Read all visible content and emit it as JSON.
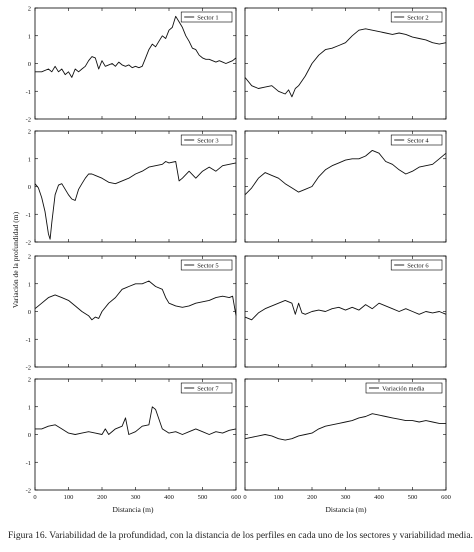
{
  "caption": "Figura 16. Variabilidad de la profundidad, con la distancia de los perfiles en cada uno de los sectores y variabilidad media.",
  "ylabel": "Variación de la profundidad (m)",
  "xlabel": "Distancia (m)",
  "chart_data": [
    {
      "type": "line",
      "legend": "Sector 1",
      "xlim": [
        0,
        600
      ],
      "ylim": [
        -2,
        2
      ],
      "series": [
        {
          "name": "Sector 1",
          "x": [
            0,
            20,
            40,
            50,
            60,
            70,
            80,
            90,
            100,
            110,
            120,
            130,
            140,
            150,
            160,
            170,
            180,
            190,
            200,
            210,
            220,
            230,
            240,
            250,
            260,
            270,
            280,
            290,
            300,
            310,
            320,
            330,
            340,
            350,
            360,
            370,
            380,
            390,
            400,
            410,
            420,
            430,
            440,
            450,
            460,
            470,
            480,
            490,
            500,
            510,
            520,
            530,
            540,
            550,
            560,
            570,
            580,
            590,
            600
          ],
          "y": [
            -0.3,
            -0.3,
            -0.2,
            -0.3,
            -0.1,
            -0.3,
            -0.2,
            -0.4,
            -0.3,
            -0.5,
            -0.2,
            -0.3,
            -0.2,
            -0.1,
            0.1,
            0.25,
            0.2,
            -0.2,
            0.1,
            -0.1,
            -0.05,
            0.0,
            -0.1,
            0.05,
            -0.05,
            -0.1,
            -0.05,
            -0.15,
            -0.1,
            -0.15,
            -0.1,
            0.2,
            0.5,
            0.7,
            0.6,
            0.8,
            1.0,
            0.9,
            1.2,
            1.3,
            1.7,
            1.5,
            1.3,
            1.0,
            0.8,
            0.55,
            0.5,
            0.3,
            0.2,
            0.15,
            0.15,
            0.1,
            0.05,
            0.1,
            0.05,
            0.0,
            0.05,
            0.1,
            0.2
          ]
        }
      ]
    },
    {
      "type": "line",
      "legend": "Sector 2",
      "xlim": [
        0,
        600
      ],
      "ylim": [
        -2,
        2
      ],
      "series": [
        {
          "name": "Sector 2",
          "x": [
            0,
            20,
            40,
            60,
            80,
            100,
            120,
            130,
            140,
            150,
            160,
            180,
            200,
            220,
            240,
            260,
            280,
            300,
            320,
            340,
            360,
            380,
            400,
            420,
            440,
            460,
            480,
            500,
            520,
            540,
            560,
            580,
            600
          ],
          "y": [
            -0.5,
            -0.8,
            -0.9,
            -0.85,
            -0.8,
            -1.0,
            -1.1,
            -0.95,
            -1.2,
            -0.9,
            -0.8,
            -0.45,
            0.0,
            0.3,
            0.5,
            0.55,
            0.65,
            0.75,
            1.0,
            1.2,
            1.25,
            1.2,
            1.15,
            1.1,
            1.05,
            1.1,
            1.05,
            0.95,
            0.9,
            0.85,
            0.75,
            0.7,
            0.75
          ]
        }
      ]
    },
    {
      "type": "line",
      "legend": "Sector 3",
      "xlim": [
        0,
        600
      ],
      "ylim": [
        -2,
        2
      ],
      "series": [
        {
          "name": "Sector 3",
          "x": [
            0,
            10,
            20,
            30,
            40,
            45,
            50,
            60,
            70,
            80,
            90,
            100,
            110,
            120,
            130,
            140,
            150,
            160,
            170,
            180,
            200,
            220,
            240,
            260,
            280,
            300,
            320,
            340,
            360,
            380,
            390,
            400,
            420,
            430,
            440,
            460,
            480,
            500,
            520,
            540,
            560,
            580,
            600
          ],
          "y": [
            0.1,
            -0.05,
            -0.4,
            -0.9,
            -1.7,
            -1.9,
            -1.3,
            -0.3,
            0.05,
            0.1,
            -0.1,
            -0.3,
            -0.45,
            -0.5,
            -0.1,
            0.1,
            0.3,
            0.45,
            0.45,
            0.4,
            0.3,
            0.15,
            0.1,
            0.2,
            0.3,
            0.45,
            0.55,
            0.7,
            0.75,
            0.8,
            0.9,
            0.85,
            0.9,
            0.2,
            0.3,
            0.55,
            0.3,
            0.55,
            0.7,
            0.55,
            0.75,
            0.8,
            0.85
          ]
        }
      ]
    },
    {
      "type": "line",
      "legend": "Sector 4",
      "xlim": [
        0,
        600
      ],
      "ylim": [
        -2,
        2
      ],
      "series": [
        {
          "name": "Sector 4",
          "x": [
            0,
            20,
            40,
            60,
            80,
            100,
            120,
            140,
            160,
            180,
            200,
            220,
            240,
            260,
            280,
            300,
            320,
            340,
            360,
            380,
            400,
            420,
            440,
            460,
            480,
            500,
            520,
            540,
            560,
            580,
            600
          ],
          "y": [
            -0.3,
            -0.05,
            0.3,
            0.5,
            0.4,
            0.3,
            0.1,
            -0.05,
            -0.2,
            -0.1,
            0.0,
            0.35,
            0.6,
            0.75,
            0.85,
            0.95,
            1.0,
            1.0,
            1.1,
            1.3,
            1.2,
            0.9,
            0.8,
            0.6,
            0.45,
            0.55,
            0.7,
            0.75,
            0.8,
            1.0,
            1.2
          ]
        }
      ]
    },
    {
      "type": "line",
      "legend": "Sector 5",
      "xlim": [
        0,
        600
      ],
      "ylim": [
        -2,
        2
      ],
      "series": [
        {
          "name": "Sector 5",
          "x": [
            0,
            20,
            40,
            60,
            80,
            100,
            120,
            140,
            160,
            170,
            180,
            190,
            200,
            220,
            240,
            260,
            280,
            300,
            320,
            340,
            360,
            380,
            390,
            400,
            420,
            440,
            460,
            480,
            500,
            520,
            540,
            560,
            580,
            590,
            600
          ],
          "y": [
            0.1,
            0.3,
            0.5,
            0.6,
            0.5,
            0.4,
            0.2,
            0.0,
            -0.15,
            -0.3,
            -0.2,
            -0.25,
            0.0,
            0.3,
            0.5,
            0.8,
            0.9,
            1.0,
            1.0,
            1.1,
            0.9,
            0.8,
            0.5,
            0.3,
            0.2,
            0.15,
            0.2,
            0.3,
            0.35,
            0.4,
            0.5,
            0.55,
            0.5,
            0.55,
            -0.15
          ]
        }
      ]
    },
    {
      "type": "line",
      "legend": "Sector 6",
      "xlim": [
        0,
        600
      ],
      "ylim": [
        -2,
        2
      ],
      "series": [
        {
          "name": "Sector 6",
          "x": [
            0,
            20,
            40,
            60,
            80,
            100,
            120,
            140,
            150,
            160,
            170,
            180,
            200,
            220,
            240,
            260,
            280,
            300,
            320,
            340,
            360,
            380,
            400,
            420,
            440,
            460,
            480,
            500,
            520,
            540,
            560,
            580,
            600
          ],
          "y": [
            -0.2,
            -0.3,
            -0.05,
            0.1,
            0.2,
            0.3,
            0.4,
            0.3,
            -0.1,
            0.3,
            -0.05,
            -0.1,
            0.0,
            0.05,
            0.0,
            0.1,
            0.15,
            0.05,
            0.15,
            0.05,
            0.25,
            0.1,
            0.3,
            0.2,
            0.1,
            0.0,
            0.1,
            0.0,
            -0.1,
            0.0,
            -0.05,
            0.0,
            -0.1
          ]
        }
      ]
    },
    {
      "type": "line",
      "legend": "Sector 7",
      "xlim": [
        0,
        600
      ],
      "ylim": [
        -2,
        2
      ],
      "series": [
        {
          "name": "Sector 7",
          "x": [
            0,
            20,
            40,
            60,
            80,
            100,
            120,
            140,
            160,
            180,
            200,
            210,
            220,
            240,
            260,
            270,
            280,
            300,
            320,
            340,
            350,
            360,
            380,
            400,
            420,
            440,
            460,
            480,
            500,
            520,
            540,
            560,
            580,
            600
          ],
          "y": [
            0.2,
            0.2,
            0.3,
            0.35,
            0.2,
            0.05,
            0.0,
            0.05,
            0.1,
            0.05,
            0.0,
            0.2,
            0.0,
            0.2,
            0.3,
            0.6,
            0.0,
            0.1,
            0.3,
            0.35,
            1.0,
            0.9,
            0.2,
            0.05,
            0.1,
            0.0,
            0.1,
            0.2,
            0.1,
            0.0,
            0.1,
            0.05,
            0.15,
            0.2
          ]
        }
      ]
    },
    {
      "type": "line",
      "legend": "Variación media",
      "xlim": [
        0,
        600
      ],
      "ylim": [
        -2,
        2
      ],
      "series": [
        {
          "name": "Variación media",
          "x": [
            0,
            20,
            40,
            60,
            80,
            100,
            120,
            140,
            160,
            180,
            200,
            220,
            240,
            260,
            280,
            300,
            320,
            340,
            360,
            380,
            400,
            420,
            440,
            460,
            480,
            500,
            520,
            540,
            560,
            580,
            600
          ],
          "y": [
            -0.15,
            -0.1,
            -0.05,
            0.0,
            -0.05,
            -0.15,
            -0.2,
            -0.15,
            -0.05,
            0.0,
            0.05,
            0.2,
            0.3,
            0.35,
            0.4,
            0.45,
            0.5,
            0.6,
            0.65,
            0.75,
            0.7,
            0.65,
            0.6,
            0.55,
            0.5,
            0.5,
            0.45,
            0.5,
            0.45,
            0.4,
            0.4
          ]
        }
      ]
    }
  ]
}
